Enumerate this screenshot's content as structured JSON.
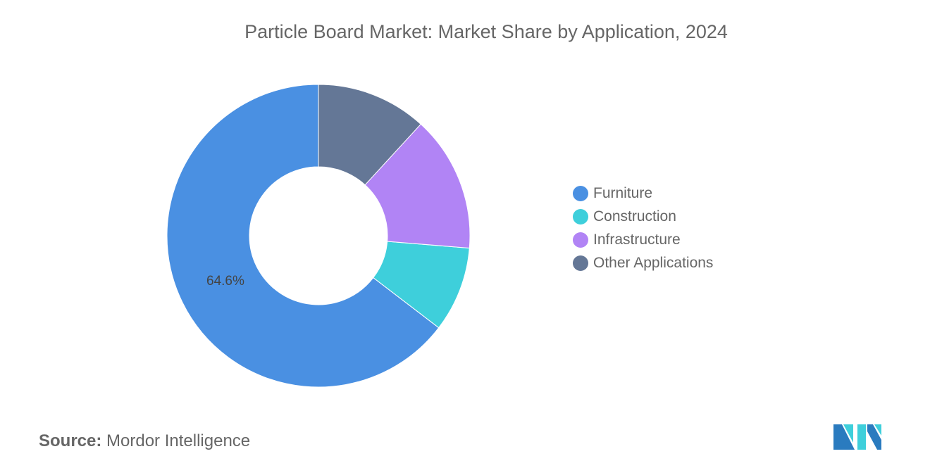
{
  "chart_data": {
    "type": "pie",
    "donut": true,
    "title": "Particle Board Market: Market Share by Application, 2024",
    "unit": "%",
    "categories": [
      "Furniture",
      "Construction",
      "Infrastructure",
      "Other Applications"
    ],
    "values": [
      64.6,
      9.1,
      14.5,
      11.8
    ],
    "colors": [
      "#4a90e2",
      "#3ecfdb",
      "#b184f5",
      "#647796"
    ],
    "data_labels": [
      {
        "category": "Furniture",
        "text": "64.6%"
      }
    ],
    "legend_position": "right"
  },
  "source": {
    "label": "Source:",
    "value": "Mordor Intelligence"
  },
  "logo": {
    "name": "mordor-intelligence-logo",
    "colors": [
      "#2a7bbf",
      "#3ecfdb"
    ]
  }
}
